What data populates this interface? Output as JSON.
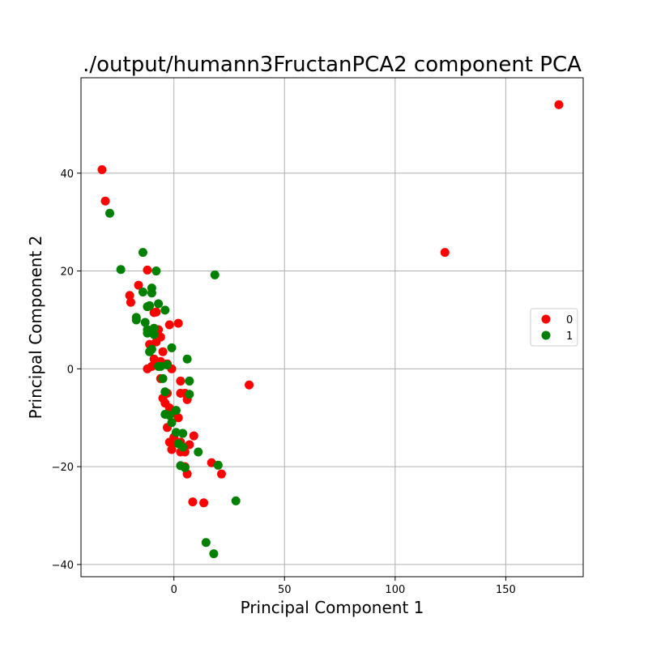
{
  "chart_data": {
    "type": "scatter",
    "title": "./output/humann3FructanPCA2 component PCA",
    "xlabel": "Principal Component 1",
    "ylabel": "Principal Component 2",
    "xlim": [
      -42,
      185
    ],
    "ylim": [
      -42.5,
      59.5
    ],
    "xticks": [
      0,
      50,
      100,
      150
    ],
    "yticks": [
      -40,
      -20,
      0,
      20,
      40
    ],
    "xtick_labels": [
      "0",
      "50",
      "100",
      "150"
    ],
    "ytick_labels": [
      "−40",
      "−20",
      "0",
      "20",
      "40"
    ],
    "grid": true,
    "legend_position": "right",
    "series": [
      {
        "name": "0",
        "color": "#ff0000",
        "points": [
          [
            174,
            54
          ],
          [
            122.5,
            23.8
          ],
          [
            -32.5,
            40.7
          ],
          [
            -31,
            34.3
          ],
          [
            34,
            -3.3
          ],
          [
            -20,
            15
          ],
          [
            -19.5,
            13.6
          ],
          [
            -16,
            17.1
          ],
          [
            -12,
            20.2
          ],
          [
            -9,
            11.5
          ],
          [
            -8,
            11.6
          ],
          [
            -7,
            8
          ],
          [
            -6,
            6.5
          ],
          [
            -8,
            5.5
          ],
          [
            -5,
            3.5
          ],
          [
            -9,
            2
          ],
          [
            -12,
            0
          ],
          [
            -10,
            0.5
          ],
          [
            -6,
            1.5
          ],
          [
            -3,
            1
          ],
          [
            -1,
            0
          ],
          [
            -2,
            9
          ],
          [
            2,
            9.3
          ],
          [
            -11,
            5
          ],
          [
            -6,
            -2
          ],
          [
            -5,
            -6
          ],
          [
            -3,
            -5
          ],
          [
            -4,
            -7
          ],
          [
            -2,
            -8
          ],
          [
            0,
            -9
          ],
          [
            3,
            -2.5
          ],
          [
            3,
            -5
          ],
          [
            5,
            -5
          ],
          [
            6,
            -6.3
          ],
          [
            2,
            -10
          ],
          [
            -2,
            -15
          ],
          [
            -1,
            -16.5
          ],
          [
            1,
            -15
          ],
          [
            3,
            -17
          ],
          [
            5,
            -17
          ],
          [
            7,
            -15.5
          ],
          [
            9,
            -13.7
          ],
          [
            5,
            -20
          ],
          [
            6,
            -21.5
          ],
          [
            17,
            -19.2
          ],
          [
            21.5,
            -21.5
          ],
          [
            8.5,
            -27.2
          ],
          [
            13.5,
            -27.4
          ],
          [
            3,
            -15
          ],
          [
            0,
            -14
          ],
          [
            -3,
            -12
          ]
        ]
      },
      {
        "name": "1",
        "color": "#008000",
        "points": [
          [
            -29,
            31.8
          ],
          [
            -24,
            20.3
          ],
          [
            -14,
            23.8
          ],
          [
            -8,
            20
          ],
          [
            18.5,
            19.2
          ],
          [
            -14,
            15.7
          ],
          [
            -10,
            16.5
          ],
          [
            -10,
            15.5
          ],
          [
            -7,
            13.3
          ],
          [
            -11,
            12.9
          ],
          [
            -12,
            12.7
          ],
          [
            -4,
            12
          ],
          [
            -17,
            10.5
          ],
          [
            -17,
            10
          ],
          [
            -13,
            9.5
          ],
          [
            -9,
            8.3
          ],
          [
            -12,
            8
          ],
          [
            -12,
            7.3
          ],
          [
            -9,
            7
          ],
          [
            -10,
            4
          ],
          [
            -11,
            3.5
          ],
          [
            -1,
            4.3
          ],
          [
            6,
            2
          ],
          [
            -7,
            0.5
          ],
          [
            -5,
            -2
          ],
          [
            7,
            -2.5
          ],
          [
            -4,
            -4.7
          ],
          [
            7,
            -5.2
          ],
          [
            -4,
            -9.3
          ],
          [
            -2,
            -9.5
          ],
          [
            1,
            -8.5
          ],
          [
            -1,
            -11
          ],
          [
            1,
            -13
          ],
          [
            4,
            -13.2
          ],
          [
            2,
            -15.3
          ],
          [
            4,
            -16
          ],
          [
            11,
            -17
          ],
          [
            3,
            -19.8
          ],
          [
            5,
            -20.2
          ],
          [
            20,
            -19.7
          ],
          [
            28,
            -27
          ],
          [
            14.5,
            -35.5
          ],
          [
            18,
            -37.8
          ],
          [
            -6,
            0.5
          ],
          [
            -3,
            0.8
          ]
        ]
      }
    ]
  }
}
